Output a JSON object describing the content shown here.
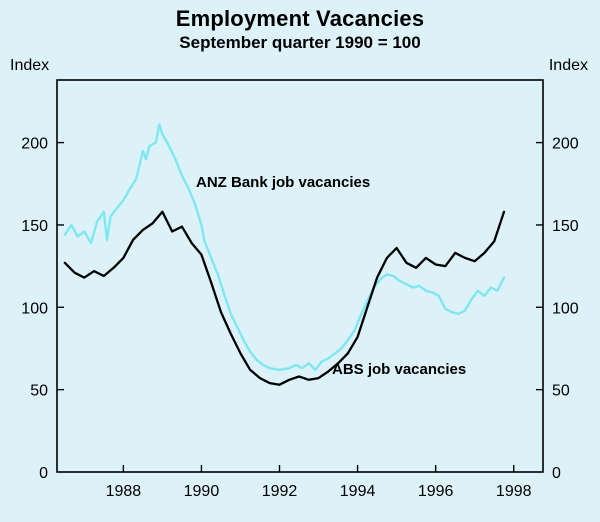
{
  "title": "Employment Vacancies",
  "subtitle": "September quarter 1990 = 100",
  "axis_unit_left": "Index",
  "axis_unit_right": "Index",
  "colors": {
    "background": "#dcf2f8",
    "frame": "#000000",
    "anz_line": "#7fe7ef",
    "abs_line": "#000000"
  },
  "annotations": {
    "anz": "ANZ Bank job vacancies",
    "abs": "ABS job vacancies"
  },
  "chart_data": {
    "type": "line",
    "title": "Employment Vacancies",
    "subtitle": "September quarter 1990 = 100",
    "xlabel": "",
    "ylabel": "Index",
    "ylim": [
      0,
      238
    ],
    "xlim": [
      1986.3,
      1998.75
    ],
    "y_ticks": [
      0,
      50,
      100,
      150,
      200
    ],
    "x_ticks": [
      1988,
      1990,
      1992,
      1994,
      1996,
      1998
    ],
    "grid": false,
    "legend_position": "annotations-inline",
    "series": [
      {
        "name": "ANZ Bank job vacancies",
        "color": "#7fe7ef",
        "width": 2.4,
        "x": [
          1986.5,
          1986.67,
          1986.83,
          1987.0,
          1987.17,
          1987.33,
          1987.5,
          1987.58,
          1987.67,
          1987.83,
          1988.0,
          1988.17,
          1988.33,
          1988.5,
          1988.58,
          1988.67,
          1988.83,
          1988.92,
          1989.0,
          1989.17,
          1989.33,
          1989.5,
          1989.67,
          1989.83,
          1990.0,
          1990.08,
          1990.25,
          1990.42,
          1990.58,
          1990.75,
          1990.92,
          1991.08,
          1991.25,
          1991.42,
          1991.58,
          1991.75,
          1992.0,
          1992.25,
          1992.42,
          1992.58,
          1992.75,
          1992.92,
          1993.08,
          1993.25,
          1993.42,
          1993.58,
          1993.75,
          1993.92,
          1994.08,
          1994.25,
          1994.42,
          1994.58,
          1994.75,
          1994.92,
          1995.08,
          1995.25,
          1995.42,
          1995.58,
          1995.75,
          1995.92,
          1996.08,
          1996.25,
          1996.42,
          1996.58,
          1996.75,
          1996.92,
          1997.08,
          1997.25,
          1997.42,
          1997.58,
          1997.75
        ],
        "values": [
          144,
          150,
          143,
          146,
          139,
          152,
          158,
          141,
          155,
          160,
          165,
          172,
          178,
          195,
          190,
          198,
          200,
          211,
          205,
          198,
          190,
          180,
          172,
          163,
          150,
          140,
          130,
          120,
          108,
          96,
          88,
          80,
          73,
          68,
          65,
          63,
          62,
          63,
          65,
          63,
          66,
          62,
          67,
          69,
          72,
          75,
          80,
          86,
          95,
          104,
          112,
          117,
          120,
          119,
          116,
          114,
          112,
          113,
          110,
          109,
          107,
          99,
          97,
          96,
          98,
          105,
          110,
          107,
          112,
          110,
          118
        ]
      },
      {
        "name": "ABS job vacancies",
        "color": "#000000",
        "width": 2.3,
        "x": [
          1986.5,
          1986.75,
          1987.0,
          1987.25,
          1987.5,
          1987.75,
          1988.0,
          1988.25,
          1988.5,
          1988.75,
          1989.0,
          1989.25,
          1989.5,
          1989.75,
          1990.0,
          1990.25,
          1990.5,
          1990.75,
          1991.0,
          1991.25,
          1991.5,
          1991.75,
          1992.0,
          1992.25,
          1992.5,
          1992.75,
          1993.0,
          1993.25,
          1993.5,
          1993.75,
          1994.0,
          1994.25,
          1994.5,
          1994.75,
          1995.0,
          1995.25,
          1995.5,
          1995.75,
          1996.0,
          1996.25,
          1996.5,
          1996.75,
          1997.0,
          1997.25,
          1997.5,
          1997.75
        ],
        "values": [
          127,
          121,
          118,
          122,
          119,
          124,
          130,
          141,
          147,
          151,
          158,
          146,
          149,
          139,
          132,
          115,
          97,
          84,
          72,
          62,
          57,
          54,
          53,
          56,
          58,
          56,
          57,
          61,
          66,
          72,
          82,
          100,
          118,
          130,
          136,
          127,
          124,
          130,
          126,
          125,
          133,
          130,
          128,
          133,
          140,
          158
        ]
      }
    ]
  }
}
